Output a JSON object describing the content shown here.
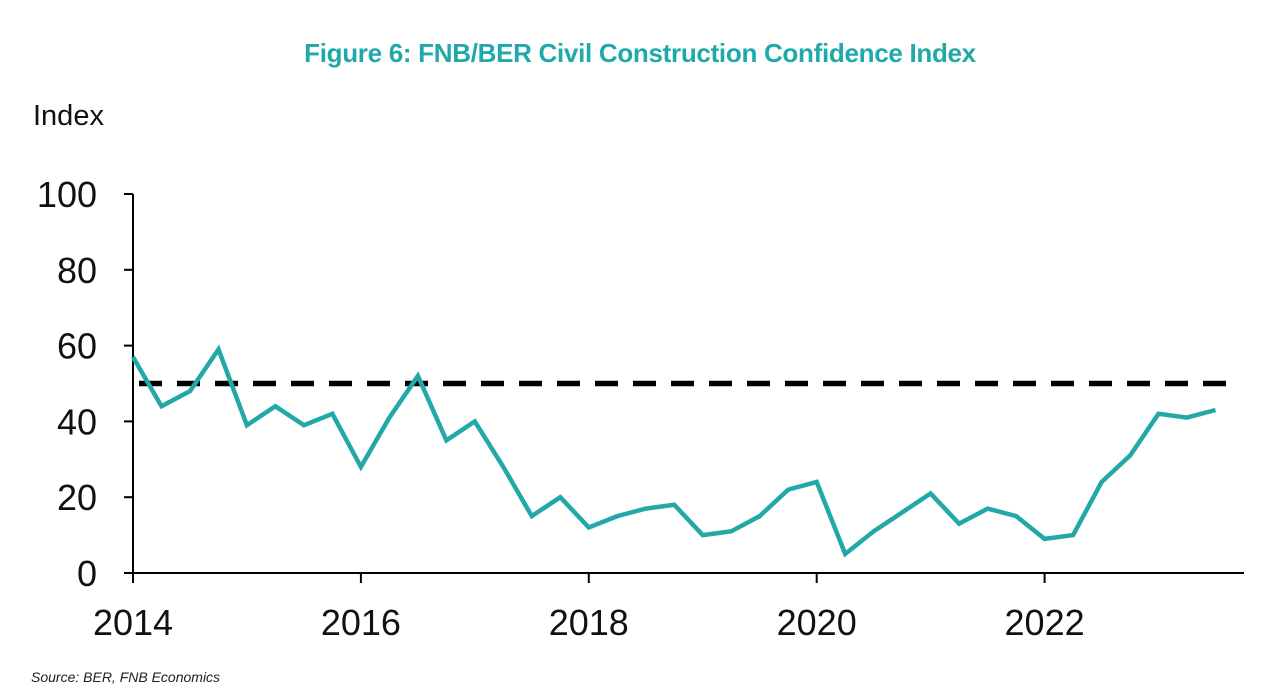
{
  "chart_data": {
    "type": "line",
    "title": "Figure 6: FNB/BER Civil Construction Confidence Index",
    "ylabel": "Index",
    "xlabel": "",
    "source": "Source: BER, FNB Economics",
    "ylim": [
      0,
      100
    ],
    "xlim": [
      2014,
      2023.75
    ],
    "yticks": [
      0,
      20,
      40,
      60,
      80,
      100
    ],
    "xticks": [
      2014,
      2016,
      2018,
      2020,
      2022
    ],
    "grid": false,
    "legend": "none",
    "series": [
      {
        "color": "#23a8a8",
        "x": [
          2014.0,
          2014.25,
          2014.5,
          2014.75,
          2015.0,
          2015.25,
          2015.5,
          2015.75,
          2016.0,
          2016.25,
          2016.5,
          2016.75,
          2017.0,
          2017.25,
          2017.5,
          2017.75,
          2018.0,
          2018.25,
          2018.5,
          2018.75,
          2019.0,
          2019.25,
          2019.5,
          2019.75,
          2020.0,
          2020.25,
          2020.5,
          2020.75,
          2021.0,
          2021.25,
          2021.5,
          2021.75,
          2022.0,
          2022.25,
          2022.5,
          2022.75,
          2023.0,
          2023.25,
          2023.5
        ],
        "values": [
          57,
          44,
          48,
          59,
          39,
          44,
          39,
          42,
          28,
          41,
          52,
          35,
          40,
          28,
          15,
          20,
          12,
          15,
          17,
          18,
          10,
          11,
          15,
          22,
          24,
          5,
          11,
          16,
          21,
          13,
          17,
          15,
          9,
          10,
          24,
          31,
          42,
          41,
          43
        ]
      }
    ],
    "reference_line": {
      "value": 50,
      "style": "dashed",
      "color": "#000000"
    }
  }
}
